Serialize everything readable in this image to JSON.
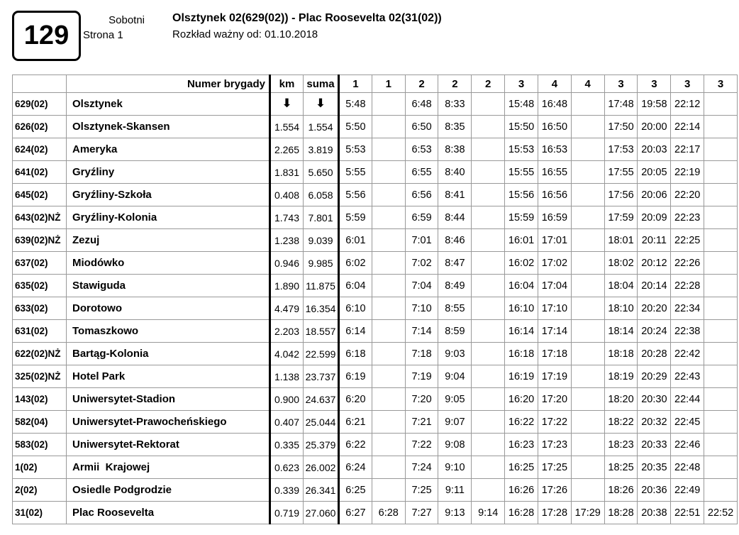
{
  "header": {
    "line_number": "129",
    "day_type": "Sobotni",
    "page_label": "Strona 1",
    "route_title": "Olsztynek 02(629(02)) - Plac Roosevelta 02(31(02))",
    "validity": "Rozkład ważny od: 01.10.2018"
  },
  "table": {
    "corner_label": "Numer brygady",
    "km_header": "km",
    "suma_header": "suma",
    "arrow_symbol": "⬇",
    "brigades": [
      "1",
      "1",
      "2",
      "2",
      "2",
      "3",
      "4",
      "4",
      "3",
      "3",
      "3",
      "3"
    ],
    "rows": [
      {
        "code": "629(02)",
        "name": "Olsztynek",
        "km": "⬇",
        "suma": "⬇",
        "times": [
          "5:48",
          "",
          "6:48",
          "8:33",
          "",
          "15:48",
          "16:48",
          "",
          "17:48",
          "19:58",
          "22:12",
          ""
        ]
      },
      {
        "code": "626(02)",
        "name": "Olsztynek-Skansen",
        "km": "1.554",
        "suma": "1.554",
        "times": [
          "5:50",
          "",
          "6:50",
          "8:35",
          "",
          "15:50",
          "16:50",
          "",
          "17:50",
          "20:00",
          "22:14",
          ""
        ]
      },
      {
        "code": "624(02)",
        "name": "Ameryka",
        "km": "2.265",
        "suma": "3.819",
        "times": [
          "5:53",
          "",
          "6:53",
          "8:38",
          "",
          "15:53",
          "16:53",
          "",
          "17:53",
          "20:03",
          "22:17",
          ""
        ]
      },
      {
        "code": "641(02)",
        "name": "Gryźliny",
        "km": "1.831",
        "suma": "5.650",
        "times": [
          "5:55",
          "",
          "6:55",
          "8:40",
          "",
          "15:55",
          "16:55",
          "",
          "17:55",
          "20:05",
          "22:19",
          ""
        ]
      },
      {
        "code": "645(02)",
        "name": "Gryźliny-Szkoła",
        "km": "0.408",
        "suma": "6.058",
        "times": [
          "5:56",
          "",
          "6:56",
          "8:41",
          "",
          "15:56",
          "16:56",
          "",
          "17:56",
          "20:06",
          "22:20",
          ""
        ]
      },
      {
        "code": "643(02)NŻ",
        "name": "Gryźliny-Kolonia",
        "km": "1.743",
        "suma": "7.801",
        "times": [
          "5:59",
          "",
          "6:59",
          "8:44",
          "",
          "15:59",
          "16:59",
          "",
          "17:59",
          "20:09",
          "22:23",
          ""
        ]
      },
      {
        "code": "639(02)NŻ",
        "name": "Zezuj",
        "km": "1.238",
        "suma": "9.039",
        "times": [
          "6:01",
          "",
          "7:01",
          "8:46",
          "",
          "16:01",
          "17:01",
          "",
          "18:01",
          "20:11",
          "22:25",
          ""
        ]
      },
      {
        "code": "637(02)",
        "name": "Miodówko",
        "km": "0.946",
        "suma": "9.985",
        "times": [
          "6:02",
          "",
          "7:02",
          "8:47",
          "",
          "16:02",
          "17:02",
          "",
          "18:02",
          "20:12",
          "22:26",
          ""
        ]
      },
      {
        "code": "635(02)",
        "name": "Stawiguda",
        "km": "1.890",
        "suma": "11.875",
        "times": [
          "6:04",
          "",
          "7:04",
          "8:49",
          "",
          "16:04",
          "17:04",
          "",
          "18:04",
          "20:14",
          "22:28",
          ""
        ]
      },
      {
        "code": "633(02)",
        "name": "Dorotowo",
        "km": "4.479",
        "suma": "16.354",
        "times": [
          "6:10",
          "",
          "7:10",
          "8:55",
          "",
          "16:10",
          "17:10",
          "",
          "18:10",
          "20:20",
          "22:34",
          ""
        ]
      },
      {
        "code": "631(02)",
        "name": "Tomaszkowo",
        "km": "2.203",
        "suma": "18.557",
        "times": [
          "6:14",
          "",
          "7:14",
          "8:59",
          "",
          "16:14",
          "17:14",
          "",
          "18:14",
          "20:24",
          "22:38",
          ""
        ]
      },
      {
        "code": "622(02)NŻ",
        "name": "Bartąg-Kolonia",
        "km": "4.042",
        "suma": "22.599",
        "times": [
          "6:18",
          "",
          "7:18",
          "9:03",
          "",
          "16:18",
          "17:18",
          "",
          "18:18",
          "20:28",
          "22:42",
          ""
        ]
      },
      {
        "code": "325(02)NŻ",
        "name": "Hotel Park",
        "km": "1.138",
        "suma": "23.737",
        "times": [
          "6:19",
          "",
          "7:19",
          "9:04",
          "",
          "16:19",
          "17:19",
          "",
          "18:19",
          "20:29",
          "22:43",
          ""
        ]
      },
      {
        "code": "143(02)",
        "name": "Uniwersytet-Stadion",
        "km": "0.900",
        "suma": "24.637",
        "times": [
          "6:20",
          "",
          "7:20",
          "9:05",
          "",
          "16:20",
          "17:20",
          "",
          "18:20",
          "20:30",
          "22:44",
          ""
        ]
      },
      {
        "code": "582(04)",
        "name": "Uniwersytet-Prawocheńskiego",
        "km": "0.407",
        "suma": "25.044",
        "times": [
          "6:21",
          "",
          "7:21",
          "9:07",
          "",
          "16:22",
          "17:22",
          "",
          "18:22",
          "20:32",
          "22:45",
          ""
        ]
      },
      {
        "code": "583(02)",
        "name": "Uniwersytet-Rektorat",
        "km": "0.335",
        "suma": "25.379",
        "times": [
          "6:22",
          "",
          "7:22",
          "9:08",
          "",
          "16:23",
          "17:23",
          "",
          "18:23",
          "20:33",
          "22:46",
          ""
        ]
      },
      {
        "code": "1(02)",
        "name": "Armii  Krajowej",
        "km": "0.623",
        "suma": "26.002",
        "times": [
          "6:24",
          "",
          "7:24",
          "9:10",
          "",
          "16:25",
          "17:25",
          "",
          "18:25",
          "20:35",
          "22:48",
          ""
        ]
      },
      {
        "code": "2(02)",
        "name": "Osiedle Podgrodzie",
        "km": "0.339",
        "suma": "26.341",
        "times": [
          "6:25",
          "",
          "7:25",
          "9:11",
          "",
          "16:26",
          "17:26",
          "",
          "18:26",
          "20:36",
          "22:49",
          ""
        ]
      },
      {
        "code": "31(02)",
        "name": "Plac Roosevelta",
        "km": "0.719",
        "suma": "27.060",
        "times": [
          "6:27",
          "6:28",
          "7:27",
          "9:13",
          "9:14",
          "16:28",
          "17:28",
          "17:29",
          "18:28",
          "20:38",
          "22:51",
          "22:52"
        ]
      }
    ]
  }
}
